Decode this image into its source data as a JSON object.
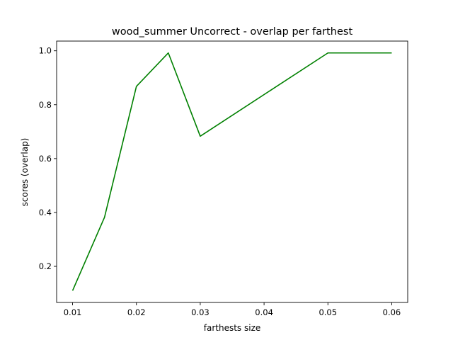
{
  "chart_data": {
    "type": "line",
    "title": "wood_summer Uncorrect - overlap per farthest",
    "xlabel": "farthests size",
    "ylabel": "scores (overlap)",
    "x": [
      0.01,
      0.015,
      0.02,
      0.025,
      0.03,
      0.05,
      0.06
    ],
    "series": [
      {
        "values": [
          0.11,
          0.382,
          0.868,
          0.992,
          0.683,
          0.992,
          0.992
        ],
        "color": "#008000"
      }
    ],
    "xticks": [
      "0.01",
      "0.02",
      "0.03",
      "0.04",
      "0.05",
      "0.06"
    ],
    "yticks": [
      "0.2",
      "0.4",
      "0.6",
      "0.8",
      "1.0"
    ],
    "xlim": [
      0.0075,
      0.0625
    ],
    "ylim": [
      0.066,
      1.036
    ],
    "grid": false
  }
}
